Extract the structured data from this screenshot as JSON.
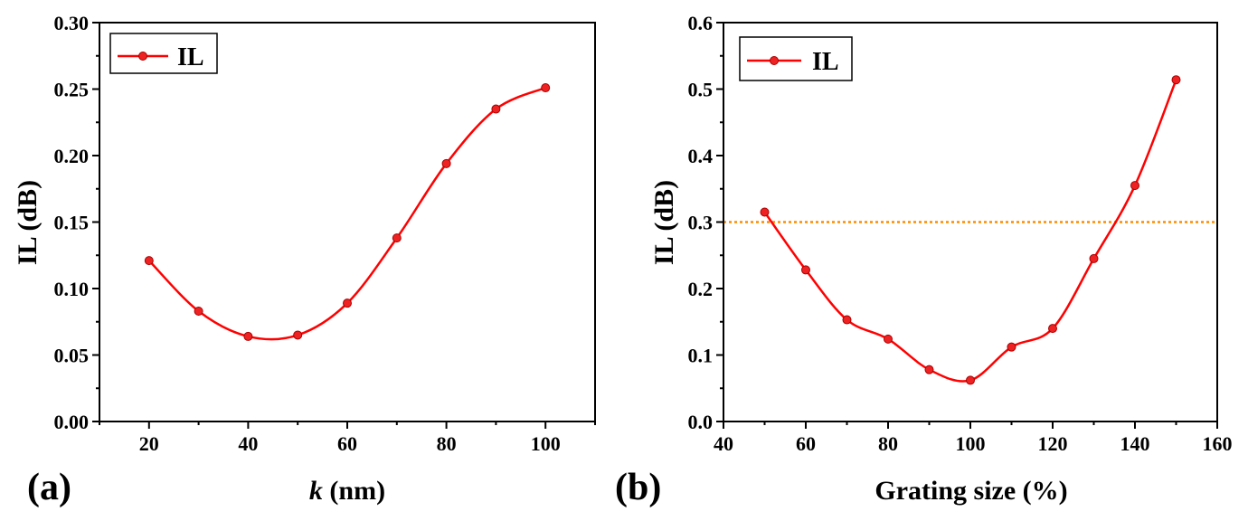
{
  "colors": {
    "series": "#ff0000",
    "marker_fill": "#ee2222",
    "reference_line": "#ff8c00",
    "axis": "#000000"
  },
  "chart_data": [
    {
      "type": "line",
      "panel_label": "(a)",
      "xlabel_italic": "k",
      "xlabel_rest": " (nm)",
      "ylabel": "IL (dB)",
      "xlim": [
        10,
        110
      ],
      "ylim": [
        0,
        0.3
      ],
      "xticks": [
        20,
        40,
        60,
        80,
        100
      ],
      "xtick_labels": [
        "20",
        "40",
        "60",
        "80",
        "100"
      ],
      "yticks": [
        0,
        0.05,
        0.1,
        0.15,
        0.2,
        0.25,
        0.3
      ],
      "ytick_labels": [
        "0.00",
        "0.05",
        "0.10",
        "0.15",
        "0.20",
        "0.25",
        "0.30"
      ],
      "legend": {
        "label": "IL",
        "placement": "top-left"
      },
      "series": [
        {
          "name": "IL",
          "x": [
            20,
            30,
            40,
            50,
            60,
            70,
            80,
            90,
            100
          ],
          "values": [
            0.121,
            0.083,
            0.064,
            0.065,
            0.089,
            0.138,
            0.194,
            0.235,
            0.251
          ]
        }
      ]
    },
    {
      "type": "line",
      "panel_label": "(b)",
      "xlabel_italic": "",
      "xlabel_rest": "Grating size (%)",
      "ylabel": "IL (dB)",
      "xlim": [
        40,
        160
      ],
      "ylim": [
        0,
        0.6
      ],
      "xticks": [
        40,
        60,
        80,
        100,
        120,
        140,
        160
      ],
      "xtick_labels": [
        "40",
        "60",
        "80",
        "100",
        "120",
        "140",
        "160"
      ],
      "yticks": [
        0,
        0.1,
        0.2,
        0.3,
        0.4,
        0.5,
        0.6
      ],
      "ytick_labels": [
        "0.0",
        "0.1",
        "0.2",
        "0.3",
        "0.4",
        "0.5",
        "0.6"
      ],
      "legend": {
        "label": "IL",
        "placement": "top-left"
      },
      "reference_line": {
        "y": 0.3,
        "style": "dotted"
      },
      "series": [
        {
          "name": "IL",
          "x": [
            50,
            60,
            70,
            80,
            90,
            100,
            110,
            120,
            130,
            140,
            150
          ],
          "values": [
            0.315,
            0.228,
            0.153,
            0.124,
            0.078,
            0.062,
            0.112,
            0.14,
            0.245,
            0.355,
            0.514
          ]
        }
      ]
    }
  ]
}
